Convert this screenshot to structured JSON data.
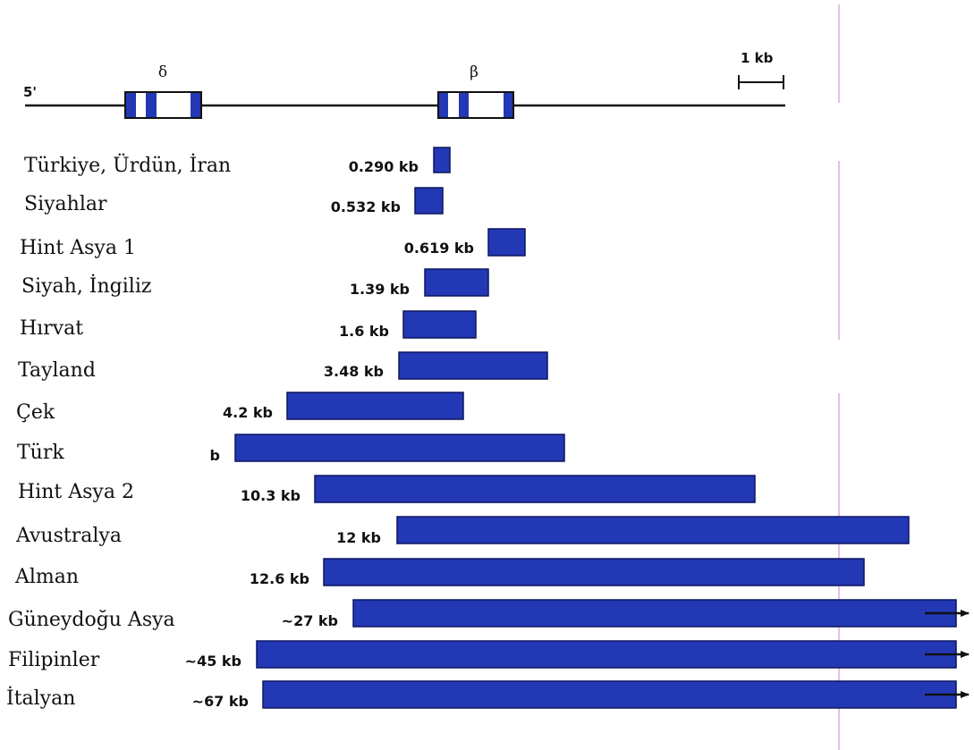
{
  "map": {
    "end_label": "5'",
    "genes": [
      {
        "symbol": "δ"
      },
      {
        "symbol": "β"
      }
    ],
    "scale_label": "1 kb"
  },
  "deletions": [
    {
      "population": "Türkiye, Ürdün, İran",
      "size": "0.290 kb"
    },
    {
      "population": "Siyahlar",
      "size": "0.532 kb"
    },
    {
      "population": "Hint Asya 1",
      "size": "0.619 kb"
    },
    {
      "population": "Siyah, İngiliz",
      "size": "1.39 kb"
    },
    {
      "population": "Hırvat",
      "size": "1.6 kb"
    },
    {
      "population": "Tayland",
      "size": "3.48 kb"
    },
    {
      "population": "Çek",
      "size": "4.2 kb"
    },
    {
      "population": "Türk",
      "size": "b"
    },
    {
      "population": "Hint Asya 2",
      "size": "10.3 kb"
    },
    {
      "population": "Avustralya",
      "size": "12 kb"
    },
    {
      "population": "Alman",
      "size": "12.6 kb"
    },
    {
      "population": "Güneydoğu Asya",
      "size": "~27 kb"
    },
    {
      "population": "Filipinler",
      "size": "~45 kb"
    },
    {
      "population": "İtalyan",
      "size": "~67 kb"
    }
  ],
  "colors": {
    "deletion_fill": "#2338b4",
    "deletion_stroke": "#0c1660",
    "exon": "#2338b4",
    "line": "#111111",
    "guide": "#e2a6e2"
  }
}
